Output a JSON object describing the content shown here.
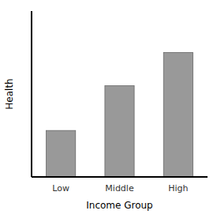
{
  "chart_data": {
    "type": "bar",
    "categories": [
      "Low",
      "Middle",
      "High"
    ],
    "values": [
      0.28,
      0.55,
      0.75
    ],
    "color": "#999999",
    "xlabel": "Income Group",
    "ylabel": "Health",
    "ylim": [
      0,
      1.0
    ],
    "tick_labels": "x",
    "grid": false
  }
}
